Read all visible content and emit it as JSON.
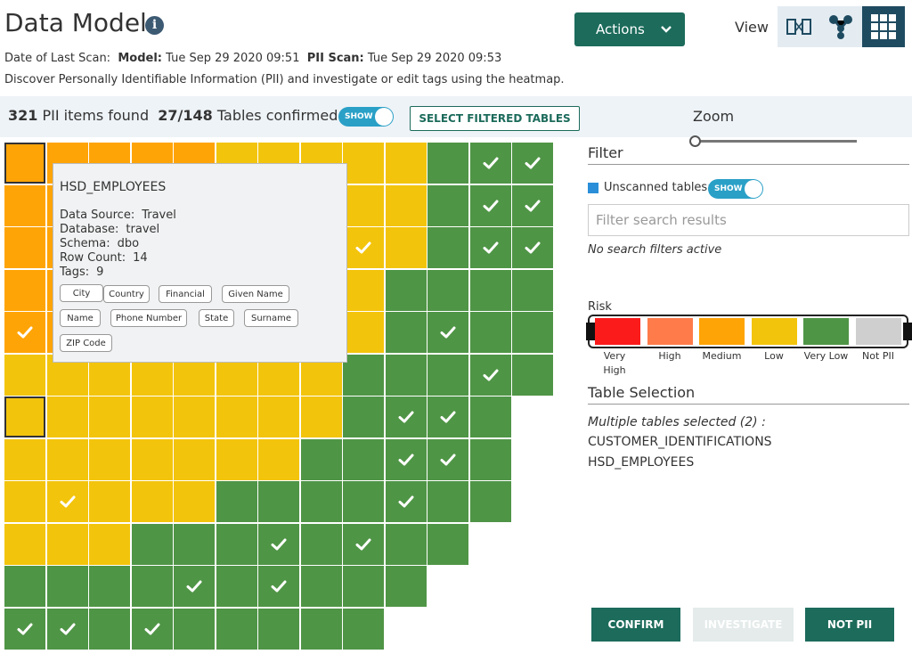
{
  "header": {
    "title": "Data Model",
    "actions_label": "Actions",
    "view_label": "View",
    "scan_prefix": "Date of Last Scan:",
    "model_label": "Model:",
    "model_date": "Tue Sep 29 2020 09:51",
    "pii_scan_label": "PII Scan:",
    "pii_scan_date": "Tue Sep 29 2020 09:53",
    "description": "Discover Personally Identifiable Information (PII) and investigate or edit tags using the heatmap."
  },
  "status": {
    "pii_count": "321",
    "pii_text": "PII items found",
    "tables_confirmed": "27/148",
    "tables_text": "Tables confirmed",
    "toggle_label": "SHOW",
    "select_filtered_label": "SELECT FILTERED TABLES",
    "zoom_label": "Zoom"
  },
  "tooltip": {
    "title": "HSD_EMPLOYEES",
    "rows": [
      {
        "label": "Data Source:",
        "value": "Travel"
      },
      {
        "label": "Database:",
        "value": "travel"
      },
      {
        "label": "Schema:",
        "value": "dbo"
      },
      {
        "label": "Row Count:",
        "value": "14"
      },
      {
        "label": "Tags:",
        "value": "9"
      }
    ],
    "tags": [
      "City",
      "Country",
      "Financial",
      "Given Name",
      "Name",
      "Phone Number",
      "State",
      "Surname",
      "ZIP Code"
    ]
  },
  "filter": {
    "title": "Filter",
    "unscanned_label": "Unscanned tables:",
    "toggle_label": "SHOW",
    "search_placeholder": "Filter search results",
    "no_filters": "No search filters active"
  },
  "risk": {
    "label": "Risk",
    "levels": [
      {
        "name": "Very High",
        "color": "#fb1b1b"
      },
      {
        "name": "High",
        "color": "#ff7b4a"
      },
      {
        "name": "Medium",
        "color": "#ffa406"
      },
      {
        "name": "Low",
        "color": "#f3c40c"
      },
      {
        "name": "Very Low",
        "color": "#4f9546"
      },
      {
        "name": "Not PII",
        "color": "#cfcfcf"
      }
    ]
  },
  "table_selection": {
    "title": "Table Selection",
    "count_text": "Multiple tables selected (2) :",
    "tables": [
      "CUSTOMER_IDENTIFICATIONS",
      "HSD_EMPLOYEES"
    ]
  },
  "buttons": {
    "confirm": "CONFIRM",
    "investigate": "INVESTIGATE",
    "not_pii": "NOT PII"
  },
  "heatmap": {
    "legend": "m=Medium l=Low v=Very Low ; * = confirmed ; # = selected ; . = empty",
    "rows": [
      "m m m m m l l l l l v v* v*",
      "m m m m m l l l l l v v* v*",
      "m m m m l l l l l* l v v* v*",
      "m m m m l l l l l v v v v",
      "m* m l l l l l l l v v* v v",
      "l l l l l l l l v v v v* v",
      "l# l l l l l l l v v* v* v .",
      "l l l l l l l v v v* v* v .",
      "l l* l l l v v v v v* v v .",
      "l l l v v v v* v v* v v . .",
      "v v v v v* v v* v v v . . .",
      "v* v* v v* v v v v v . . . ."
    ],
    "selected_extra": [
      [
        0,
        0
      ]
    ]
  }
}
